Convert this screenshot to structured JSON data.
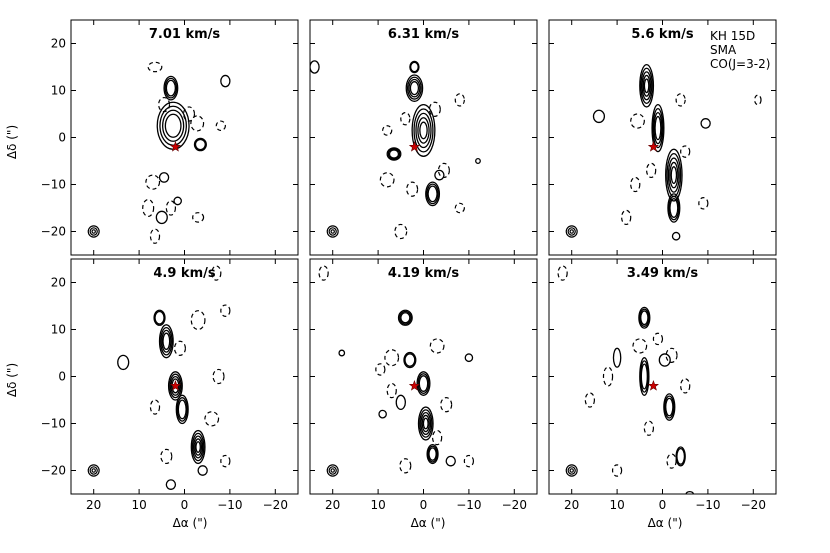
{
  "figure": {
    "annotation": [
      "KH 15D",
      "SMA",
      "CO(J=3-2)"
    ],
    "x_axis_label": "Δα (\")",
    "y_axis_label": "Δδ (\")"
  },
  "chart_data": {
    "type": "contour",
    "grid": "2x3 channel maps",
    "xlim": [
      25,
      -25
    ],
    "ylim": [
      -25,
      25
    ],
    "x_ticks": [
      20,
      10,
      0,
      -10,
      -20
    ],
    "y_ticks": [
      20,
      10,
      0,
      -10,
      -20
    ],
    "x_tick_labels": [
      "20",
      "10",
      "0",
      "−10",
      "−20"
    ],
    "y_tick_labels": [
      "20",
      "10",
      "0",
      "−10",
      "−20"
    ],
    "star_position": [
      2,
      -2
    ],
    "star_color": "#cc0000",
    "beam_position": [
      20,
      -20
    ],
    "positive_contour_style": "solid",
    "negative_contour_style": "dashed",
    "panels": [
      {
        "velocity_label": "7.01 km/s",
        "positive_blobs": [
          [
            2.5,
            2.5,
            3.5,
            5,
            4
          ],
          [
            3,
            10.5,
            1.5,
            2.5,
            3
          ],
          [
            -3.5,
            -1.5,
            1.3,
            1.3,
            2
          ],
          [
            5,
            -17,
            1.2,
            1.3,
            1
          ],
          [
            -9,
            12,
            1,
            1.2,
            1
          ],
          [
            4.5,
            -8.5,
            1,
            1,
            1
          ],
          [
            1.5,
            -13.5,
            0.8,
            0.8,
            1
          ]
        ],
        "negative_blobs": [
          [
            4.5,
            7,
            1.2,
            1.5
          ],
          [
            -1,
            5,
            1.2,
            1.5
          ],
          [
            -2.8,
            3,
            1.4,
            1.6
          ],
          [
            7,
            -9.5,
            1.5,
            1.5
          ],
          [
            8,
            -15,
            1.2,
            1.8
          ],
          [
            3,
            -15,
            1,
            1.5
          ],
          [
            6.5,
            -21,
            1,
            1.5
          ],
          [
            -3,
            -17,
            1.2,
            1
          ],
          [
            -8,
            2.5,
            1,
            1
          ],
          [
            6.5,
            15,
            1.5,
            1
          ]
        ]
      },
      {
        "velocity_label": "6.31 km/s",
        "positive_blobs": [
          [
            2,
            10.5,
            1.8,
            2.8,
            4
          ],
          [
            0,
            1.5,
            2.5,
            5.5,
            5
          ],
          [
            6.5,
            -3.5,
            1.5,
            1.3,
            3
          ],
          [
            -2,
            -12,
            1.5,
            2.5,
            3
          ],
          [
            2,
            15,
            1,
            1.2,
            2
          ],
          [
            -3.5,
            -8,
            1,
            1,
            1
          ],
          [
            -12,
            -5,
            0.5,
            0.5,
            1
          ],
          [
            24,
            15,
            1,
            1.3,
            1
          ]
        ],
        "negative_blobs": [
          [
            -2.5,
            6,
            1.2,
            1.5
          ],
          [
            4,
            4,
            1,
            1.3
          ],
          [
            8,
            -9,
            1.5,
            1.5
          ],
          [
            2.5,
            -11,
            1.2,
            1.5
          ],
          [
            -4.5,
            -7,
            1.2,
            1.5
          ],
          [
            5,
            -20,
            1.3,
            1.5
          ],
          [
            -8,
            8,
            1,
            1.3
          ],
          [
            8,
            1.5,
            1,
            1
          ],
          [
            -8,
            -15,
            1,
            1
          ]
        ]
      },
      {
        "velocity_label": "5.6 km/s",
        "positive_blobs": [
          [
            3.5,
            11,
            1.5,
            4.5,
            5
          ],
          [
            1,
            2,
            1.3,
            5,
            4
          ],
          [
            -2.5,
            -8,
            1.8,
            5.5,
            5
          ],
          [
            -2.5,
            -15,
            1.3,
            3,
            3
          ],
          [
            14,
            4.5,
            1.2,
            1.3,
            1
          ],
          [
            -9.5,
            3,
            1,
            1,
            1
          ],
          [
            -3,
            -21,
            0.8,
            0.8,
            1
          ]
        ],
        "negative_blobs": [
          [
            5.5,
            3.5,
            1.5,
            1.5
          ],
          [
            2.5,
            -7,
            1,
            1.5
          ],
          [
            6,
            -10,
            1,
            1.5
          ],
          [
            8,
            -17,
            1,
            1.5
          ],
          [
            -4,
            8,
            1,
            1.3
          ],
          [
            -5,
            -3,
            1,
            1.2
          ],
          [
            -9,
            -14,
            1,
            1.2
          ],
          [
            -21,
            8,
            0.7,
            1
          ]
        ]
      },
      {
        "velocity_label": "4.9 km/s",
        "positive_blobs": [
          [
            4,
            7.5,
            1.5,
            3.5,
            4
          ],
          [
            2,
            -2,
            1.5,
            3,
            4
          ],
          [
            0.5,
            -7,
            1.3,
            3,
            3
          ],
          [
            -3,
            -15,
            1.5,
            3.5,
            5
          ],
          [
            5.5,
            12.5,
            1.2,
            1.6,
            2
          ],
          [
            13.5,
            3,
            1.2,
            1.5,
            1
          ],
          [
            -4,
            -20,
            1,
            1,
            1
          ],
          [
            3,
            -23,
            1,
            1,
            1
          ]
        ],
        "negative_blobs": [
          [
            -3,
            12,
            1.5,
            2
          ],
          [
            1,
            6,
            1.2,
            1.5
          ],
          [
            -7.5,
            0,
            1.2,
            1.5
          ],
          [
            6.5,
            -6.5,
            1,
            1.5
          ],
          [
            -6,
            -9,
            1.5,
            1.5
          ],
          [
            4,
            -17,
            1.2,
            1.5
          ],
          [
            -7,
            22,
            1,
            1.5
          ],
          [
            -9,
            14,
            1,
            1.2
          ],
          [
            -9,
            -18,
            1,
            1.2
          ]
        ]
      },
      {
        "velocity_label": "4.19 km/s",
        "positive_blobs": [
          [
            4,
            12.5,
            1.5,
            1.6,
            3
          ],
          [
            3,
            3.5,
            1.3,
            1.6,
            2
          ],
          [
            0,
            -1.5,
            1.4,
            2.5,
            3
          ],
          [
            -0.5,
            -10,
            1.6,
            3.5,
            5
          ],
          [
            -2,
            -16.5,
            1.2,
            2,
            3
          ],
          [
            5,
            -5.5,
            1,
            1.5,
            1
          ],
          [
            -6,
            -18,
            1,
            1,
            1
          ],
          [
            9,
            -8,
            0.8,
            0.8,
            1
          ],
          [
            -10,
            4,
            0.8,
            0.8,
            1
          ],
          [
            18,
            5,
            0.6,
            0.6,
            1
          ]
        ],
        "negative_blobs": [
          [
            7,
            4,
            1.5,
            1.7
          ],
          [
            -3,
            6.5,
            1.5,
            1.5
          ],
          [
            7,
            -3,
            1,
            1.5
          ],
          [
            9.5,
            1.5,
            1,
            1.2
          ],
          [
            -5,
            -6,
            1.2,
            1.5
          ],
          [
            -3,
            -13,
            1,
            1.5
          ],
          [
            4,
            -19,
            1.2,
            1.5
          ],
          [
            22,
            22,
            1,
            1.5
          ],
          [
            -10,
            -18,
            1,
            1.2
          ]
        ]
      },
      {
        "velocity_label": "3.49 km/s",
        "positive_blobs": [
          [
            4,
            12.5,
            1.2,
            2.2,
            3
          ],
          [
            4,
            0,
            1,
            4,
            3
          ],
          [
            -1.5,
            -6.5,
            1.2,
            2.8,
            3
          ],
          [
            -4,
            -17,
            1,
            2,
            2
          ],
          [
            10,
            4,
            0.8,
            2,
            1
          ],
          [
            -0.5,
            3.5,
            1.2,
            1.3,
            1
          ],
          [
            -6,
            -25,
            0.8,
            0.5,
            1
          ]
        ],
        "negative_blobs": [
          [
            5,
            6.5,
            1.5,
            1.5
          ],
          [
            -2,
            4.5,
            1.2,
            1.5
          ],
          [
            1,
            8,
            1,
            1.2
          ],
          [
            12,
            0,
            1,
            2
          ],
          [
            -5,
            -2,
            1,
            1.5
          ],
          [
            3,
            -11,
            1,
            1.5
          ],
          [
            -2,
            -18,
            1,
            1.5
          ],
          [
            16,
            -5,
            1,
            1.5
          ],
          [
            22,
            22,
            1,
            1.5
          ],
          [
            10,
            -20,
            1,
            1.2
          ]
        ]
      }
    ]
  }
}
